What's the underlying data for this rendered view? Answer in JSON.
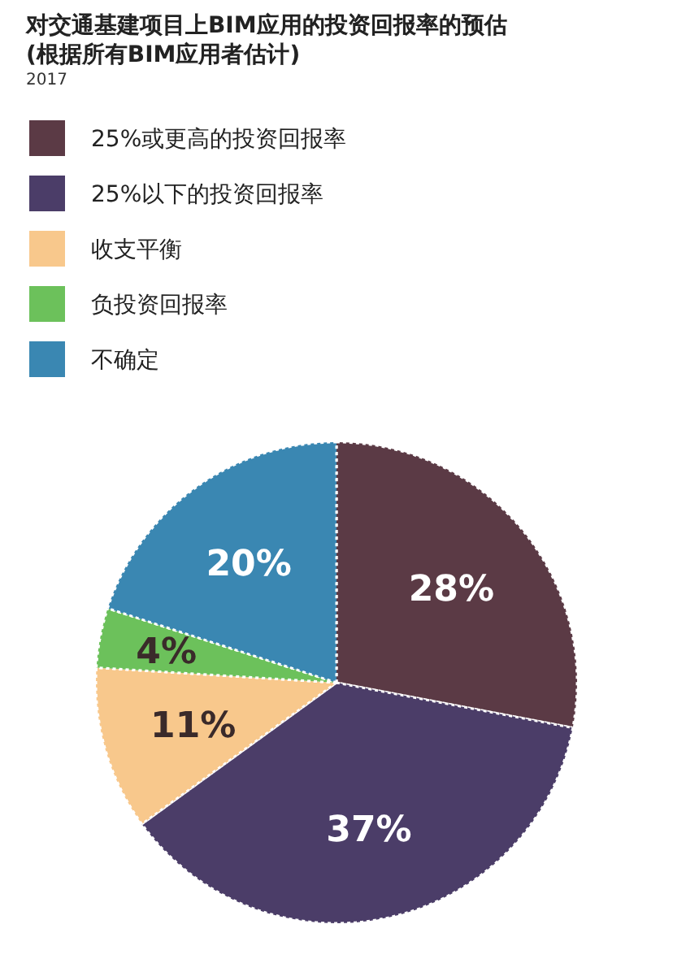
{
  "chart_data": {
    "type": "pie",
    "title": "对交通基建项目上BIM应用的投资回报率的预估",
    "subtitle": "(根据所有BIM应用者估计)",
    "annotations": [
      "2017"
    ],
    "categories": [
      "25%或更高的投资回报率",
      "25%以下的投资回报率",
      "收支平衡",
      "负投资回报率",
      "不确定"
    ],
    "values": [
      28,
      37,
      11,
      4,
      20
    ],
    "value_labels": [
      "28%",
      "37%",
      "11%",
      "4%",
      "20%"
    ],
    "colors": [
      "#5b3a45",
      "#4b3d68",
      "#f8c88c",
      "#6cc15b",
      "#3a87b2"
    ],
    "legend": "top left"
  }
}
